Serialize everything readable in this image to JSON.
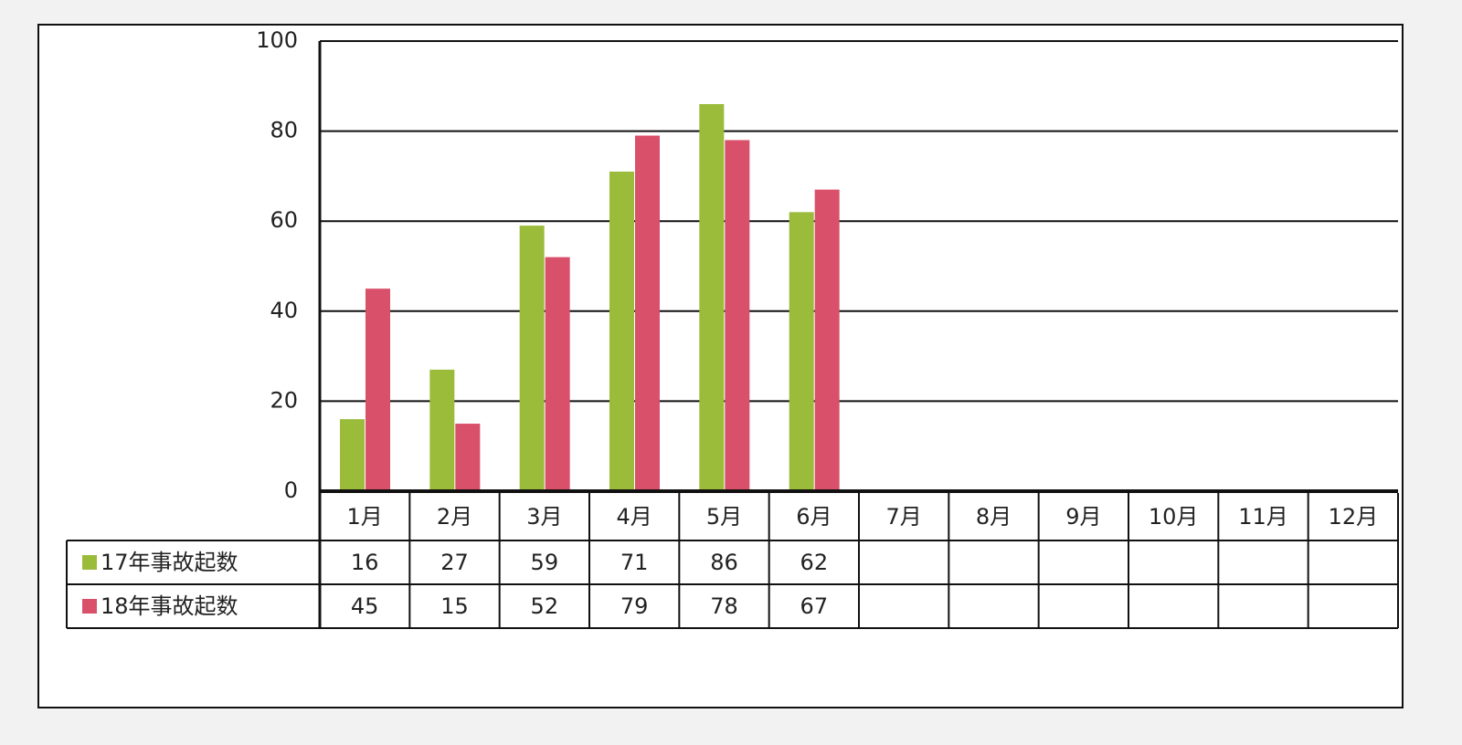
{
  "chart_data": {
    "type": "bar",
    "categories": [
      "1月",
      "2月",
      "3月",
      "4月",
      "5月",
      "6月",
      "7月",
      "8月",
      "9月",
      "10月",
      "11月",
      "12月"
    ],
    "series": [
      {
        "name": "17年事故起数",
        "color": "#9bbb3b",
        "values": [
          16,
          27,
          59,
          71,
          86,
          62,
          null,
          null,
          null,
          null,
          null,
          null
        ]
      },
      {
        "name": "18年事故起数",
        "color": "#d9506a",
        "values": [
          45,
          15,
          52,
          79,
          78,
          67,
          null,
          null,
          null,
          null,
          null,
          null
        ]
      }
    ],
    "ylim": [
      0,
      100
    ],
    "yticks": [
      0,
      20,
      40,
      60,
      80,
      100
    ],
    "grid": true
  }
}
